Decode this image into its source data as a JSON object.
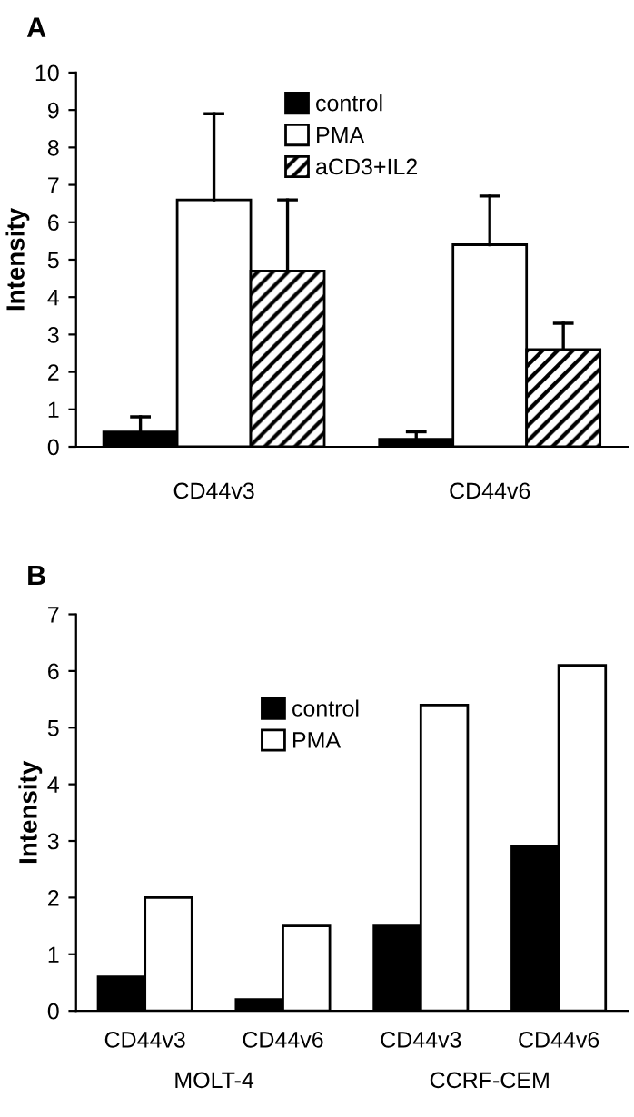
{
  "chart_data": [
    {
      "type": "bar",
      "title": "A",
      "ylabel": "Intensity",
      "categories": [
        "CD44v3",
        "CD44v6"
      ],
      "series": [
        {
          "name": "control",
          "color": "#000000",
          "values": [
            0.4,
            0.2
          ],
          "errors": [
            [
              0.4,
              0.8
            ],
            [
              0.2,
              0.4
            ]
          ]
        },
        {
          "name": "PMA",
          "color": "#ffffff",
          "values": [
            6.6,
            5.4
          ],
          "errors": [
            [
              6.6,
              8.9
            ],
            [
              5.4,
              6.7
            ]
          ]
        },
        {
          "name": "aCD3+IL2",
          "color": "#000000",
          "values": [
            4.7,
            2.6
          ],
          "errors": [
            [
              4.7,
              6.6
            ],
            [
              2.6,
              3.3
            ]
          ]
        }
      ],
      "ylim": [
        0,
        10
      ],
      "yticks": [
        0,
        1,
        2,
        3,
        4,
        5,
        6,
        7,
        8,
        9,
        10
      ],
      "legend": "top",
      "grid": false
    },
    {
      "type": "bar",
      "title": "B",
      "ylabel": "Intensity",
      "categories": [
        "CD44v3",
        "CD44v6",
        "CD44v3",
        "CD44v6"
      ],
      "series": [
        {
          "name": "control",
          "color": "#000000",
          "values": [
            0.6,
            0.2,
            1.5,
            2.9
          ]
        },
        {
          "name": "PMA",
          "color": "#ffffff",
          "values": [
            2.0,
            1.5,
            5.4,
            6.1
          ]
        }
      ],
      "ylim": [
        0,
        7
      ],
      "yticks": [
        0,
        1,
        2,
        3,
        4,
        5,
        6,
        7
      ],
      "legend": "upper left",
      "grid": false,
      "annotations": [
        "MOLT-4",
        "CCRF-CEM"
      ]
    }
  ]
}
